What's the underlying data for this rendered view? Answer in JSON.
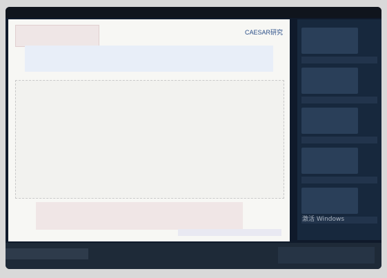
{
  "slide": {
    "brand": "CAESAR研究"
  },
  "watermark": "激活 Windows"
}
